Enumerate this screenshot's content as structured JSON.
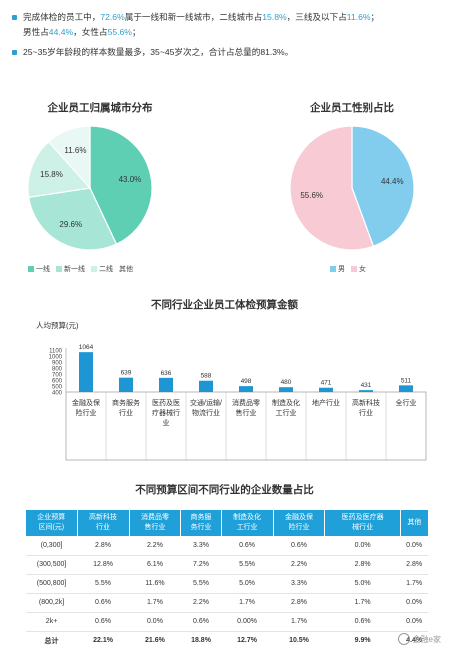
{
  "bullets": [
    {
      "p1": "完成体检的员工中，",
      "v1": "72.6%",
      "p2": "属于一线和新一线城市，二线城市占",
      "v2": "15.8%",
      "p3": "，三线及以下占",
      "v3": "11.6%",
      "p4": "；",
      "line2_p1": "男性占",
      "line2_v1": "44.4%",
      "line2_p2": "，女性占",
      "line2_v2": "55.6%",
      "line2_p3": "；"
    },
    {
      "text": "25~35岁年龄段的样本数量最多，35~45岁次之，合计占总量的81.3%。"
    }
  ],
  "colors": {
    "accent": "#2e9fd1",
    "bar": "#1e96d4",
    "table_header": "#1fa0d8",
    "city_yixian": "#5fcfb4",
    "city_xinyixian": "#a7e5d6",
    "city_erxian": "#cdf0e7",
    "city_qita": "#e9f8f4",
    "male": "#82cdee",
    "female": "#f7cad4"
  },
  "pie_city": {
    "title": "企业员工归属城市分布",
    "legend": [
      "一线",
      "新一线",
      "二线",
      "其他"
    ]
  },
  "pie_gender": {
    "title": "企业员工性别占比",
    "legend": [
      "男",
      "女"
    ]
  },
  "bar_chart": {
    "title": "不同行业企业员工体检预算金额",
    "ylabel": "人均预算(元)"
  },
  "table": {
    "title": "不同预算区间不同行业的企业数量占比",
    "headers": [
      "企业预算\n区间(元)",
      "高新科技\n行业",
      "消费品零\n售行业",
      "商务服\n务行业",
      "制造及化\n工行业",
      "金融及保\n险行业",
      "医药及医疗器\n械行业",
      "其他"
    ],
    "rows": [
      [
        "(0,300]",
        "2.8%",
        "2.2%",
        "3.3%",
        "0.6%",
        "0.6%",
        "0.0%",
        "0.0%"
      ],
      [
        "(300,500]",
        "12.8%",
        "6.1%",
        "7.2%",
        "5.5%",
        "2.2%",
        "2.8%",
        "2.8%"
      ],
      [
        "(500,800]",
        "5.5%",
        "11.6%",
        "5.5%",
        "5.0%",
        "3.3%",
        "5.0%",
        "1.7%"
      ],
      [
        "(800,2k]",
        "0.6%",
        "1.7%",
        "2.2%",
        "1.7%",
        "2.8%",
        "1.7%",
        "0.0%"
      ],
      [
        "2k+",
        "0.6%",
        "0.0%",
        "0.6%",
        "0.00%",
        "1.7%",
        "0.6%",
        "0.0%"
      ],
      [
        "总计",
        "22.1%",
        "21.6%",
        "18.8%",
        "12.7%",
        "10.5%",
        "9.9%",
        "4.4%"
      ]
    ]
  },
  "watermark": {
    "text": "金融e家"
  },
  "chart_data": [
    {
      "type": "pie",
      "title": "企业员工归属城市分布",
      "labels": [
        "一线",
        "新一线",
        "二线",
        "其他"
      ],
      "values": [
        43.0,
        29.6,
        15.8,
        11.6
      ],
      "value_labels": [
        "43.0%",
        "29.6%",
        "15.8%",
        "11.6%"
      ],
      "colors": [
        "#5fcfb4",
        "#a7e5d6",
        "#cdf0e7",
        "#e9f8f4"
      ],
      "legend_position": "bottom-left"
    },
    {
      "type": "pie",
      "title": "企业员工性别占比",
      "labels": [
        "男",
        "女"
      ],
      "values": [
        44.4,
        55.6
      ],
      "value_labels": [
        "44.4%",
        "55.6%"
      ],
      "colors": [
        "#82cdee",
        "#f7cad4"
      ],
      "legend_position": "bottom-left"
    },
    {
      "type": "bar",
      "title": "不同行业企业员工体检预算金额",
      "ylabel": "人均预算(元)",
      "xlabel": "",
      "categories": [
        "金融及保\n险行业",
        "商务服务\n行业",
        "医药及医\n疗器械行\n业",
        "交通/运输/\n物流行业",
        "消费品零\n售行业",
        "制造及化\n工行业",
        "地产行业",
        "高新科技\n行业",
        "全行业"
      ],
      "values": [
        1064,
        639,
        636,
        588,
        498,
        480,
        471,
        431,
        511
      ],
      "ylim": [
        400,
        1100
      ],
      "yticks": [
        400,
        500,
        600,
        700,
        800,
        900,
        1000,
        1100
      ],
      "grid": false
    }
  ]
}
